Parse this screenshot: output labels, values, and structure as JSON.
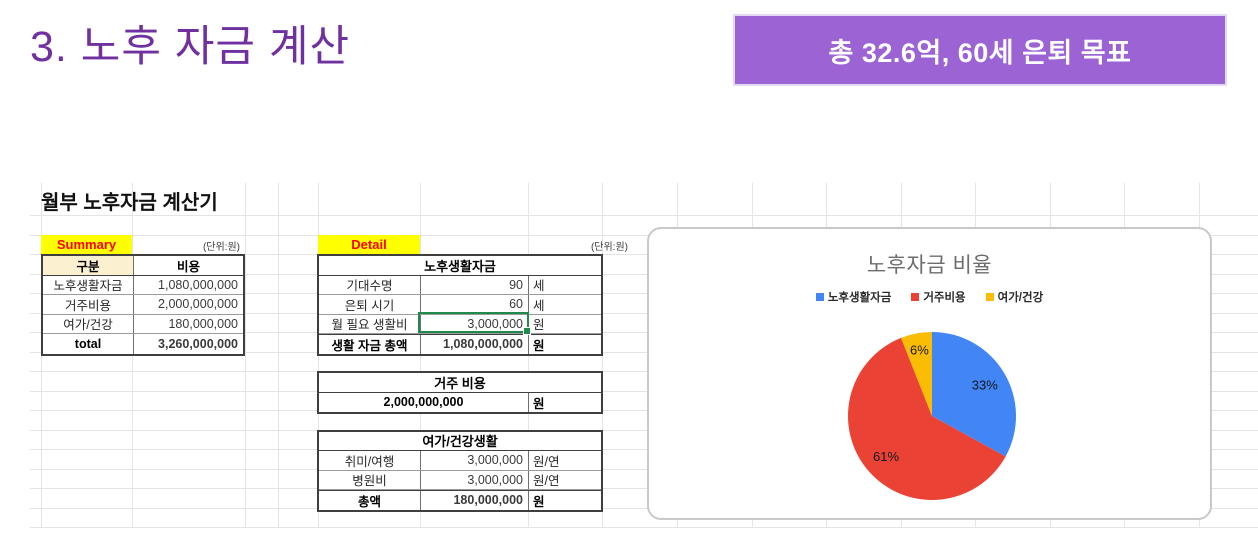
{
  "page": {
    "title": "3. 노후 자금 계산",
    "badge": "총 32.6억, 60세 은퇴 목표"
  },
  "sheet": {
    "heading": "월부 노후자금 계산기",
    "unit_note": "(단위:원)",
    "summary": {
      "label": "Summary",
      "columns": [
        "구분",
        "비용"
      ],
      "rows": [
        [
          "노후생활자금",
          "1,080,000,000"
        ],
        [
          "거주비용",
          "2,000,000,000"
        ],
        [
          "여가/건강",
          "180,000,000"
        ]
      ],
      "total_row": [
        "total",
        "3,260,000,000"
      ]
    },
    "detail": {
      "label": "Detail",
      "section1": {
        "title": "노후생활자금",
        "rows": [
          [
            "기대수명",
            "90",
            "세"
          ],
          [
            "은퇴 시기",
            "60",
            "세"
          ],
          [
            "월 필요 생활비",
            "3,000,000",
            "원"
          ]
        ],
        "total": [
          "생활 자금 총액",
          "1,080,000,000",
          "원"
        ]
      },
      "section2": {
        "title": "거주 비용",
        "value": "2,000,000,000",
        "unit": "원"
      },
      "section3": {
        "title": "여가/건강생활",
        "rows": [
          [
            "취미/여행",
            "3,000,000",
            "원/연"
          ],
          [
            "병원비",
            "3,000,000",
            "원/연"
          ]
        ],
        "total": [
          "총액",
          "180,000,000",
          "원"
        ]
      }
    }
  },
  "chart_data": {
    "type": "pie",
    "title": "노후자금 비율",
    "labels": [
      "노후생활자금",
      "거주비용",
      "여가/건강"
    ],
    "values": [
      33,
      61,
      6
    ],
    "value_labels": [
      "33%",
      "61%",
      "6%"
    ],
    "colors": [
      "#4285F4",
      "#EA4335",
      "#FBBC04"
    ],
    "label_color": "#14171c",
    "legend_position": "top",
    "start_angle_deg": -90
  },
  "theme": {
    "title_purple": "#7030A0",
    "badge_purple": "#9B63D3",
    "highlight_yellow": "#FFFF00",
    "highlight_red_text": "#FF0000",
    "header_cream": "#FBF0D0",
    "selection_green": "#1F8A4C"
  }
}
